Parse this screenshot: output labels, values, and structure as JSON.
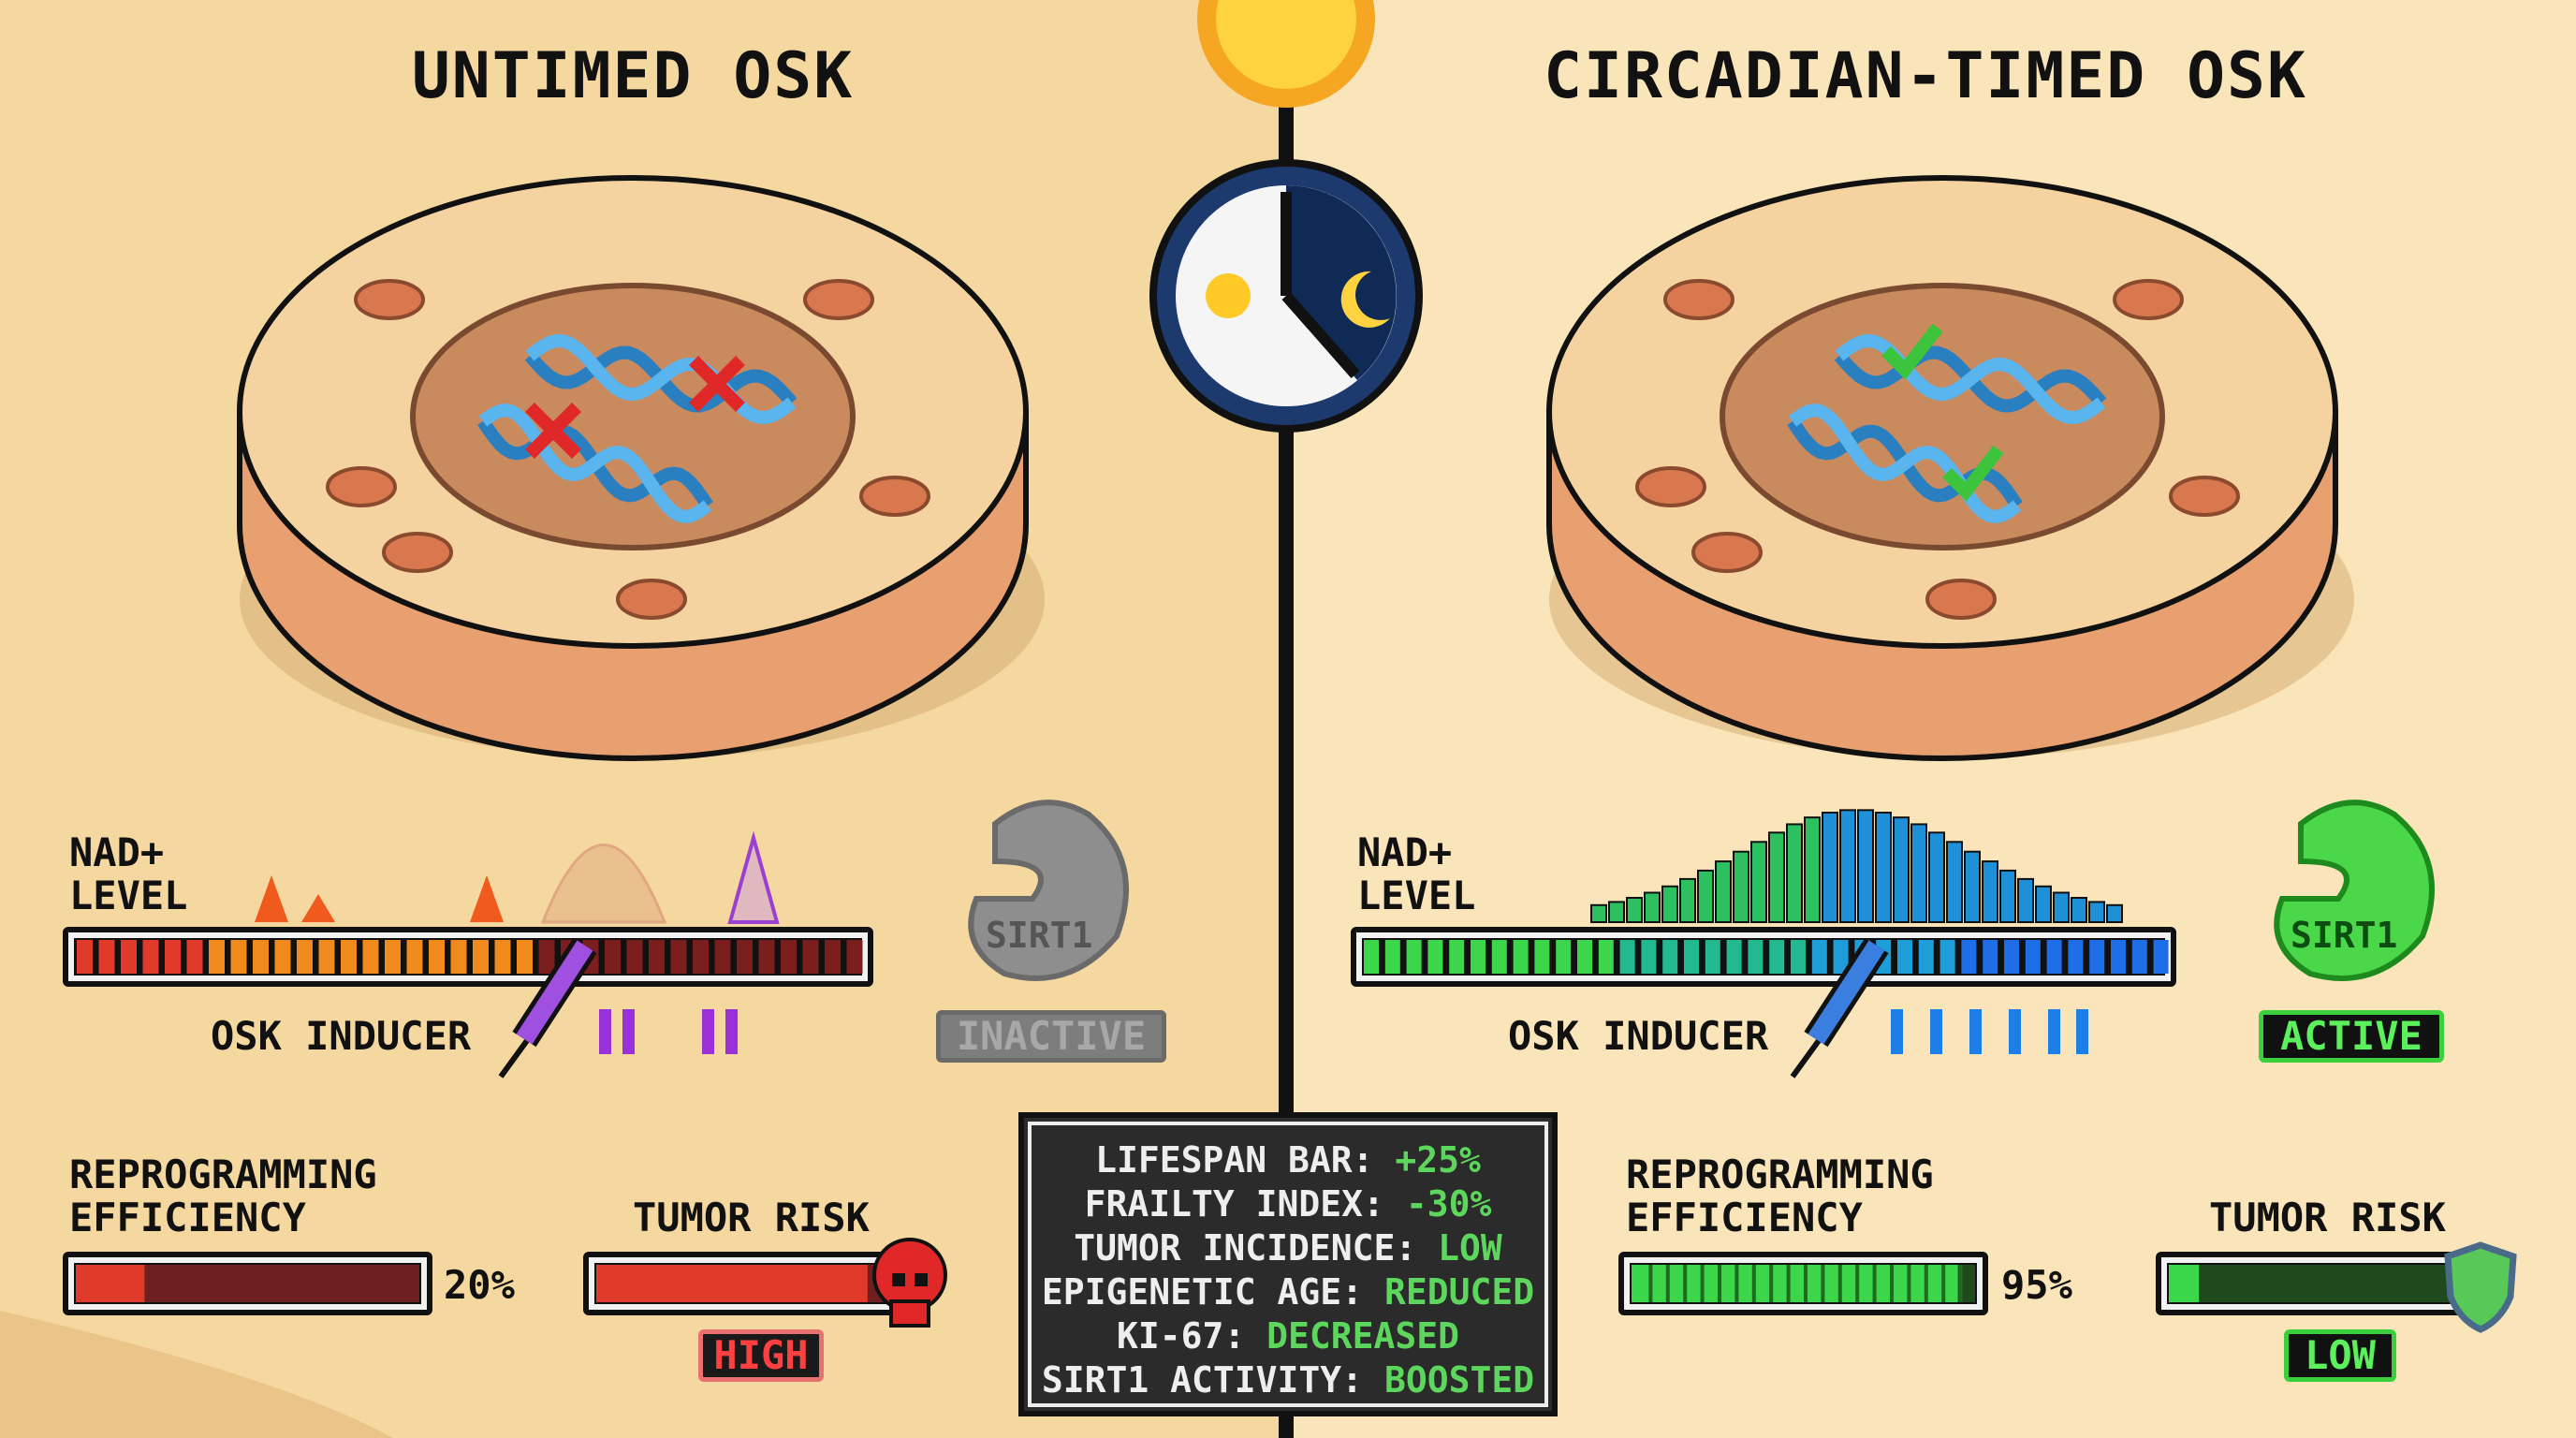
{
  "left": {
    "title": "UNTIMED OSK",
    "nad_label": [
      "NAD+",
      "LEVEL"
    ],
    "osk_label": "OSK INDUCER",
    "sirt1": "SIRT1",
    "sirt1_status": "INACTIVE",
    "reprog_label": [
      "REPROGRAMMING",
      "EFFICIENCY"
    ],
    "reprog_value": "20%",
    "reprog_fraction": 0.2,
    "tumor_label": "TUMOR RISK",
    "tumor_status": "HIGH",
    "tumor_fraction": 0.9
  },
  "right": {
    "title": "CIRCADIAN-TIMED OSK",
    "nad_label": [
      "NAD+",
      "LEVEL"
    ],
    "osk_label": "OSK INDUCER",
    "sirt1": "SIRT1",
    "sirt1_status": "ACTIVE",
    "reprog_label": [
      "REPROGRAMMING",
      "EFFICIENCY"
    ],
    "reprog_value": "95%",
    "reprog_fraction": 0.95,
    "tumor_label": "TUMOR RISK",
    "tumor_status": "LOW",
    "tumor_fraction": 0.1
  },
  "stats": [
    {
      "label": "LIFESPAN BAR:",
      "value": "+25%"
    },
    {
      "label": "FRAILTY INDEX:",
      "value": "-30%"
    },
    {
      "label": "TUMOR INCIDENCE:",
      "value": "LOW"
    },
    {
      "label": "EPIGENETIC AGE:",
      "value": "REDUCED"
    },
    {
      "label": "KI-67:",
      "value": "DECREASED"
    },
    {
      "label": "SIRT1 ACTIVITY:",
      "value": "BOOSTED"
    }
  ],
  "icons": [
    "sun-icon",
    "clock-icon",
    "moon-icon",
    "dna-icon",
    "cross-icon",
    "check-icon",
    "syringe-icon",
    "skull-icon",
    "shield-icon"
  ],
  "colors": {
    "bg_left": "#f5d7a0",
    "bg_right": "#f9e5b9",
    "good": "#5cd65c",
    "bad": "#e53030",
    "inactive": "#8a8a8a"
  }
}
